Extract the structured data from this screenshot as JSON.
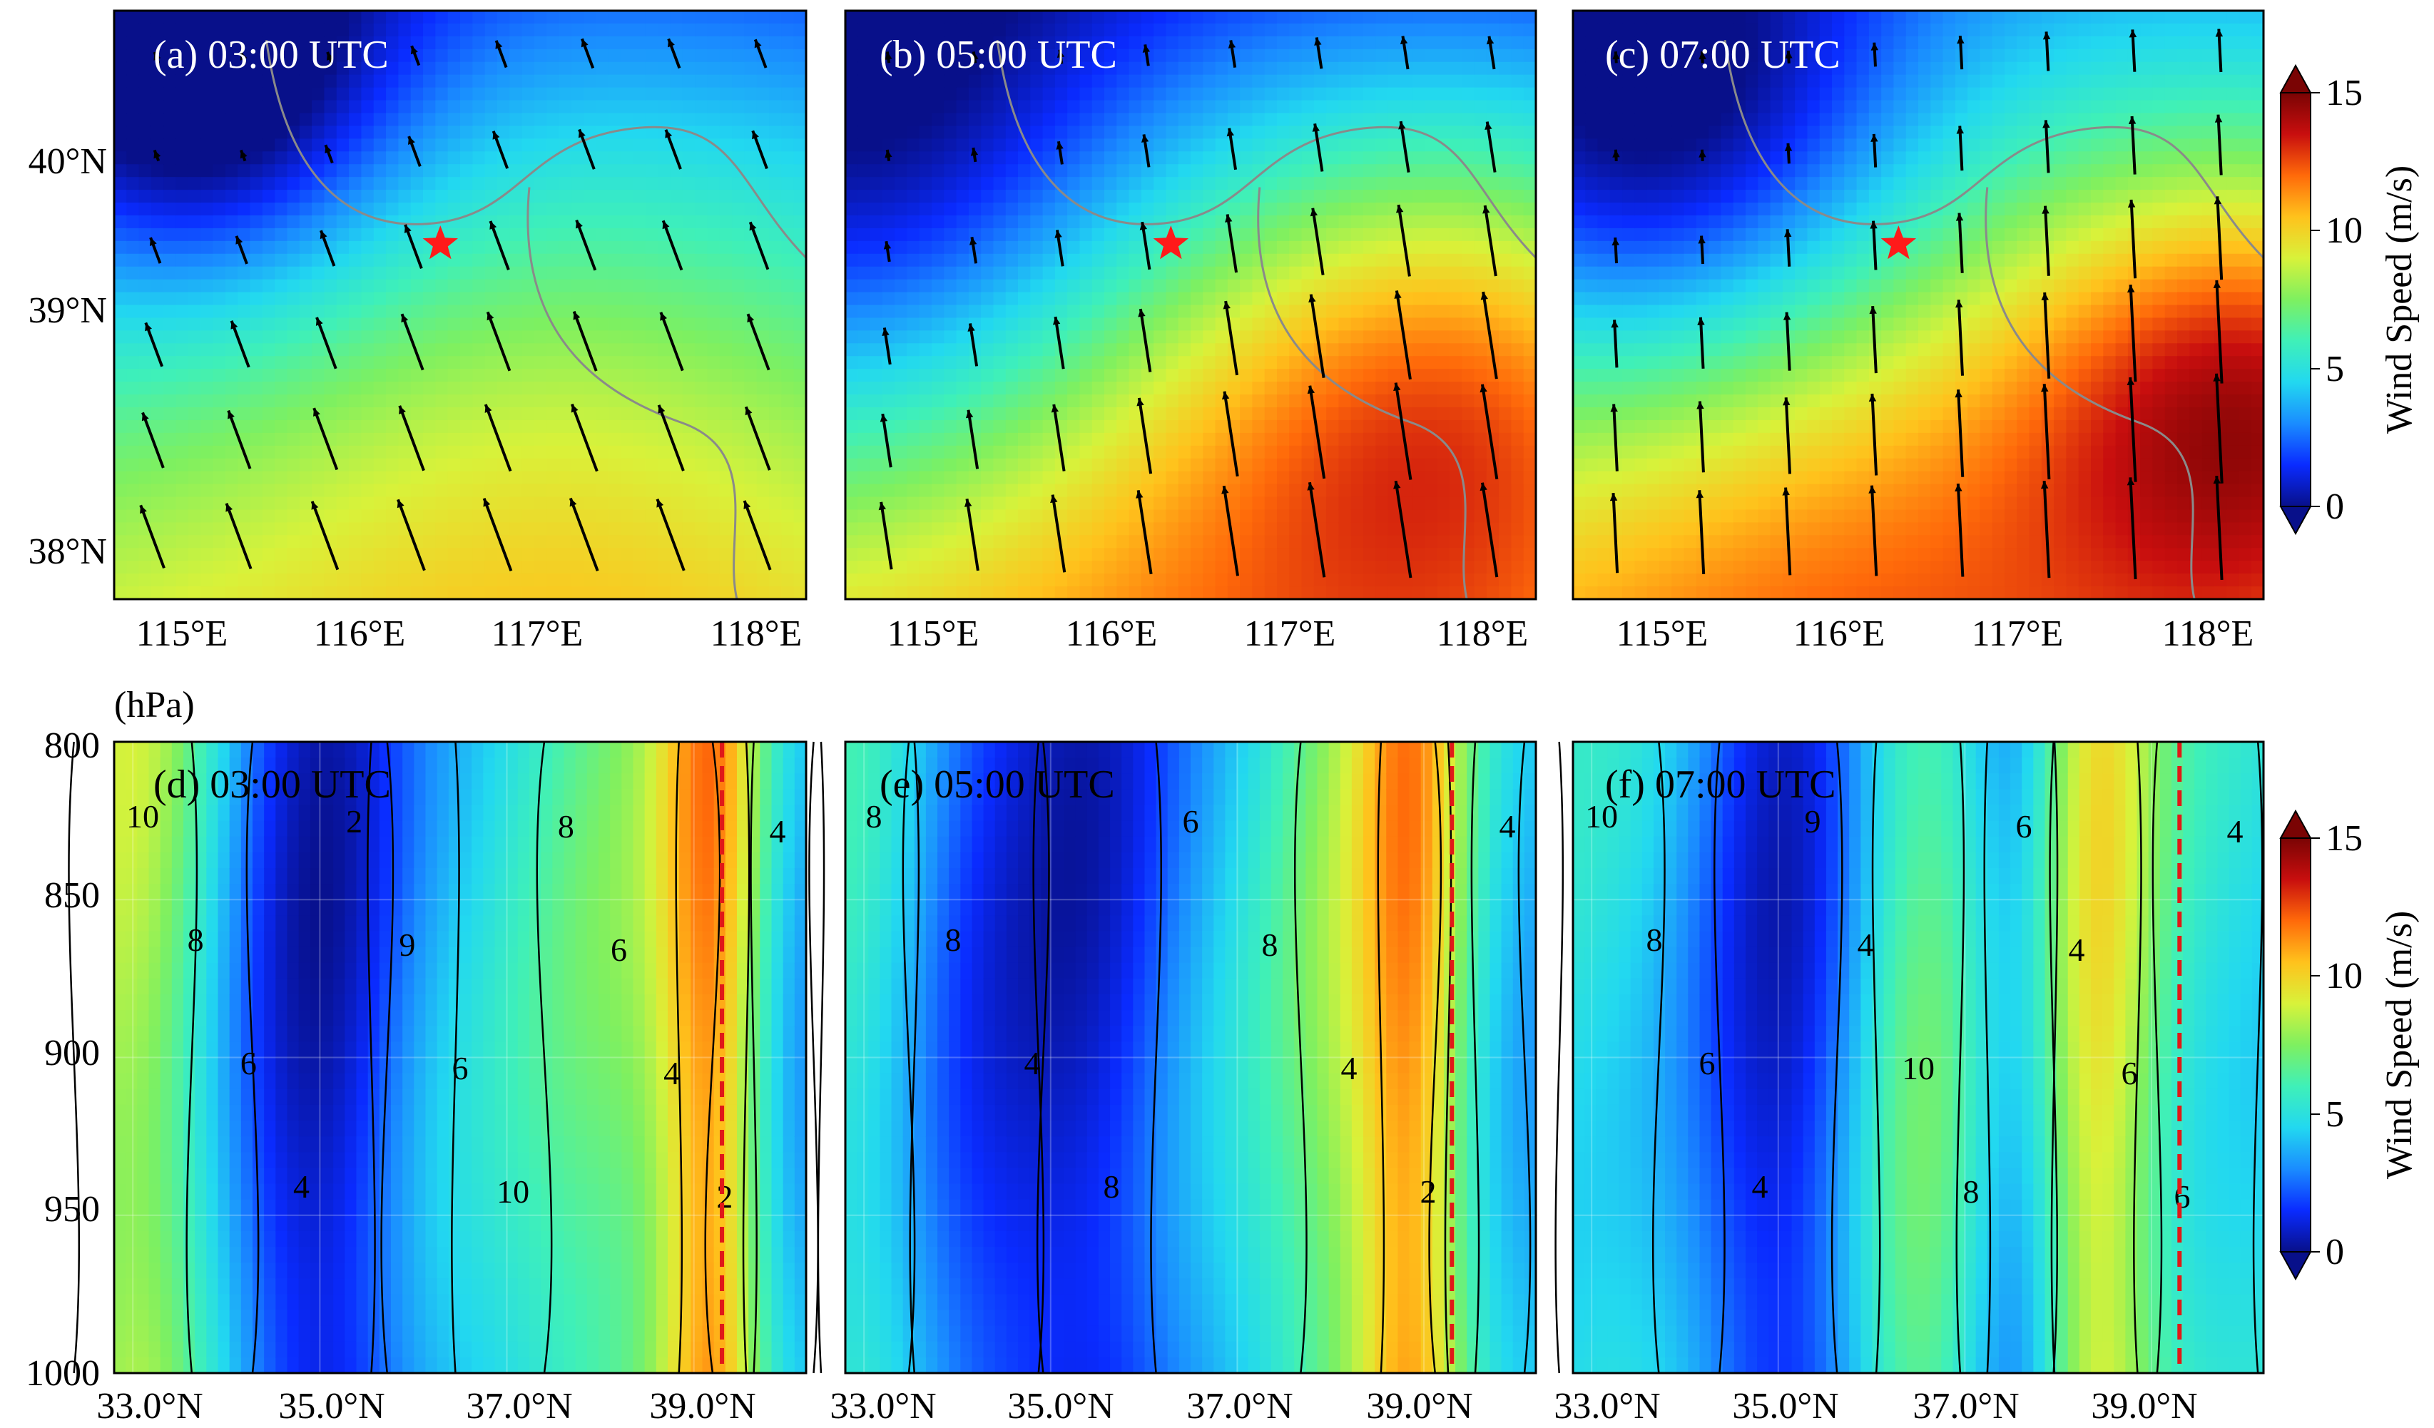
{
  "colors": {
    "cmap": [
      "#08108a",
      "#0a2bff",
      "#1a8cff",
      "#22d8f0",
      "#3ff0b8",
      "#7ef060",
      "#d8f23a",
      "#ffc21c",
      "#ff6a0a",
      "#c80e0e",
      "#7a0404"
    ],
    "star": "#ff1a1a",
    "section_line": "#e01818",
    "border_line": "#8a8a8a",
    "arrow": "#000000",
    "contour": "#000000"
  },
  "chart_data": [
    {
      "id": "a",
      "type": "heatmap",
      "title": "(a) 03:00 UTC",
      "xlabel": "",
      "ylabel": "",
      "x_ticks": [
        "115°E",
        "116°E",
        "117°E",
        "118°E"
      ],
      "y_ticks": [
        "38°N",
        "39°N",
        "40°N"
      ],
      "xlim": [
        114.75,
        118.25
      ],
      "ylim": [
        37.75,
        40.65
      ],
      "grid": false,
      "star": {
        "lon": 116.4,
        "lat": 39.5
      },
      "wind_field": {
        "base": 5.0,
        "peaks": [
          [
            117.0,
            38.6,
            2.5,
            1.4
          ],
          [
            115.2,
            40.25,
            -5.0,
            0.7
          ]
        ],
        "north_gradient": -2.2
      },
      "arrow_dir": {
        "u": -0.35,
        "v": 0.94
      }
    },
    {
      "id": "b",
      "type": "heatmap",
      "title": "(b) 05:00 UTC",
      "xlabel": "",
      "ylabel": "",
      "x_ticks": [
        "115°E",
        "116°E",
        "117°E",
        "118°E"
      ],
      "y_ticks": [],
      "xlim": [
        114.75,
        118.25
      ],
      "ylim": [
        37.75,
        40.65
      ],
      "grid": false,
      "star": {
        "lon": 116.4,
        "lat": 39.5
      },
      "wind_field": {
        "base": 5.5,
        "peaks": [
          [
            117.9,
            38.8,
            4.5,
            0.9
          ],
          [
            116.6,
            38.4,
            2.5,
            1.2
          ],
          [
            114.9,
            39.8,
            -4.0,
            1.0
          ]
        ],
        "north_gradient": -2.5
      },
      "arrow_dir": {
        "u": -0.15,
        "v": 0.98
      }
    },
    {
      "id": "c",
      "type": "heatmap",
      "title": "(c) 07:00 UTC",
      "xlabel": "",
      "ylabel": "",
      "x_ticks": [
        "115°E",
        "116°E",
        "117°E",
        "118°E"
      ],
      "y_ticks": [],
      "xlim": [
        114.75,
        118.25
      ],
      "ylim": [
        37.75,
        40.65
      ],
      "grid": false,
      "star": {
        "lon": 116.4,
        "lat": 39.5
      },
      "wind_field": {
        "base": 6.5,
        "peaks": [
          [
            118.2,
            38.75,
            6.0,
            0.8
          ],
          [
            116.2,
            38.3,
            3.0,
            1.3
          ],
          [
            115.2,
            40.0,
            -6.0,
            0.9
          ]
        ],
        "north_gradient": -2.0
      },
      "arrow_dir": {
        "u": -0.05,
        "v": 1.0
      }
    },
    {
      "id": "d",
      "type": "heatmap",
      "title": "(d) 03:00 UTC",
      "xlabel": "",
      "ylabel": "(hPa)",
      "x_ticks": [
        "33.0°N",
        "35.0°N",
        "37.0°N",
        "39.0°N"
      ],
      "y_ticks": [
        "800",
        "850",
        "900",
        "950",
        "1000"
      ],
      "xlim": [
        32.8,
        40.2
      ],
      "ylim": [
        1000,
        800
      ],
      "grid": true,
      "section_lat": 39.3,
      "wind_field": {
        "base": 5.0,
        "columns": [
          [
            33.0,
            9.5,
            0.7
          ],
          [
            35.0,
            1.5,
            0.8
          ],
          [
            36.0,
            5.5,
            0.5
          ],
          [
            38.3,
            8.0,
            1.0
          ],
          [
            39.2,
            10.5,
            0.4
          ],
          [
            40.0,
            4.0,
            0.4
          ]
        ]
      },
      "contour_labels": [
        "10",
        "8",
        "6",
        "4",
        "2",
        "9",
        "6",
        "10",
        "8",
        "6",
        "4",
        "2",
        "4"
      ]
    },
    {
      "id": "e",
      "type": "heatmap",
      "title": "(e) 05:00 UTC",
      "xlabel": "",
      "ylabel": "",
      "x_ticks": [
        "33.0°N",
        "35.0°N",
        "37.0°N",
        "39.0°N"
      ],
      "y_ticks": [],
      "xlim": [
        32.8,
        40.2
      ],
      "ylim": [
        1000,
        800
      ],
      "grid": true,
      "section_lat": 39.3,
      "wind_field": {
        "base": 5.0,
        "columns": [
          [
            33.0,
            7.0,
            0.6
          ],
          [
            34.2,
            3.0,
            0.8
          ],
          [
            35.5,
            2.5,
            0.7
          ],
          [
            38.4,
            9.0,
            0.8
          ],
          [
            38.9,
            9.0,
            0.4
          ],
          [
            40.0,
            4.5,
            0.5
          ]
        ]
      },
      "contour_labels": [
        "8",
        "8",
        "4",
        "8",
        "6",
        "8",
        "4",
        "2",
        "4"
      ]
    },
    {
      "id": "f",
      "type": "heatmap",
      "title": "(f) 07:00 UTC",
      "xlabel": "",
      "ylabel": "",
      "x_ticks": [
        "33.0°N",
        "35.0°N",
        "37.0°N",
        "39.0°N"
      ],
      "y_ticks": [],
      "xlim": [
        32.8,
        40.2
      ],
      "ylim": [
        1000,
        800
      ],
      "grid": true,
      "section_lat": 39.3,
      "wind_field": {
        "base": 5.5,
        "columns": [
          [
            33.0,
            6.0,
            0.8
          ],
          [
            35.0,
            2.0,
            0.7
          ],
          [
            36.5,
            8.0,
            0.5
          ],
          [
            37.6,
            3.5,
            0.4
          ],
          [
            38.4,
            10.5,
            0.5
          ],
          [
            39.6,
            6.0,
            0.6
          ]
        ]
      },
      "contour_labels": [
        "10",
        "8",
        "6",
        "4",
        "9",
        "4",
        "10",
        "8",
        "6",
        "4",
        "6",
        "6",
        "4"
      ]
    }
  ],
  "colorbars": [
    {
      "id": "top",
      "label": "Wind Speed (m/s)",
      "ticks": [
        "0",
        "5",
        "10",
        "15"
      ],
      "range": [
        0,
        15
      ]
    },
    {
      "id": "bottom",
      "label": "Wind Speed (m/s)",
      "ticks": [
        "0",
        "5",
        "10",
        "15"
      ],
      "range": [
        0,
        15
      ]
    }
  ]
}
